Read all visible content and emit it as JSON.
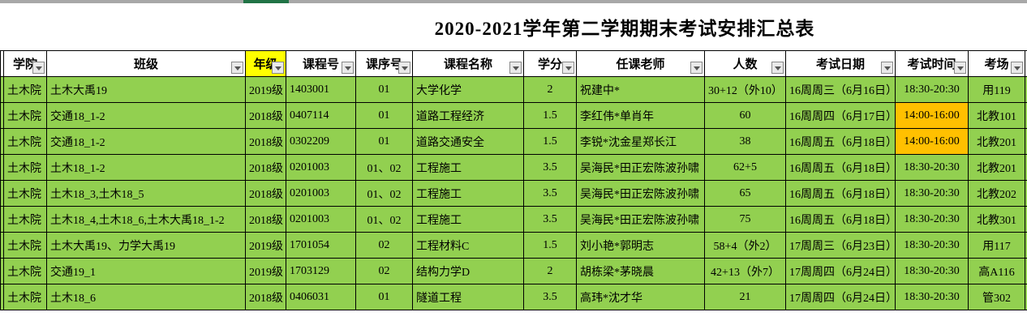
{
  "window": {
    "topbar_color": "#a8a8a8",
    "active_segment_color": "#217346"
  },
  "title": "2020-2021学年第二学期期末考试安排汇总表",
  "table": {
    "colors": {
      "row_bg": "#92d050",
      "time_highlight_bg": "#ffc000",
      "grade_header_bg": "#ffff00",
      "border": "#000000"
    },
    "column_keys": [
      "college",
      "class",
      "grade",
      "course_no",
      "seq_no",
      "course_name",
      "credits",
      "teacher",
      "count",
      "date",
      "time",
      "room"
    ],
    "columns": [
      {
        "label": "学院"
      },
      {
        "label": "班级"
      },
      {
        "label": "年级"
      },
      {
        "label": "课程号"
      },
      {
        "label": "课序号"
      },
      {
        "label": "课程名称"
      },
      {
        "label": "学分"
      },
      {
        "label": "任课老师"
      },
      {
        "label": "人数"
      },
      {
        "label": "考试日期"
      },
      {
        "label": "考试时间"
      },
      {
        "label": "考场"
      }
    ],
    "rows": [
      {
        "cells": [
          "土木院",
          "土木大禹19",
          "2019级",
          "1403001",
          "01",
          "大学化学",
          "2",
          "祝建中*",
          "30+12（外10）",
          "16周周三（6月16日）",
          "18:30-20:30",
          "用119"
        ],
        "time_highlight": false
      },
      {
        "cells": [
          "土木院",
          "交通18_1-2",
          "2018级",
          "0407114",
          "01",
          "道路工程经济",
          "1.5",
          "李红伟*单肖年",
          "60",
          "16周周四（6月17日）",
          "14:00-16:00",
          "北教101"
        ],
        "time_highlight": true
      },
      {
        "cells": [
          "土木院",
          "交通18_1-2",
          "2018级",
          "0302209",
          "01",
          "道路交通安全",
          "1.5",
          "李锐*沈金星郑长江",
          "38",
          "16周周五（6月18日）",
          "14:00-16:00",
          "北教201"
        ],
        "time_highlight": true
      },
      {
        "cells": [
          "土木院",
          "土木18_1-2",
          "2018级",
          "0201003",
          "01、02",
          "工程施工",
          "3.5",
          "吴海民*田正宏陈波孙啸",
          "62+5",
          "16周周五（6月18日）",
          "18:30-20:30",
          "北教201"
        ],
        "time_highlight": false
      },
      {
        "cells": [
          "土木院",
          "土木18_3,土木18_5",
          "2018级",
          "0201003",
          "01、02",
          "工程施工",
          "3.5",
          "吴海民*田正宏陈波孙啸",
          "65",
          "16周周五（6月18日）",
          "18:30-20:30",
          "北教202"
        ],
        "time_highlight": false
      },
      {
        "cells": [
          "土木院",
          "土木18_4,土木18_6,土木大禹18_1-2",
          "2018级",
          "0201003",
          "01、02",
          "工程施工",
          "3.5",
          "吴海民*田正宏陈波孙啸",
          "75",
          "16周周五（6月18日）",
          "18:30-20:30",
          "北教301"
        ],
        "time_highlight": false
      },
      {
        "cells": [
          "土木院",
          "土木大禹19、力学大禹19",
          "2019级",
          "1701054",
          "02",
          "工程材料C",
          "1.5",
          "刘小艳*郭明志",
          "58+4（外2）",
          "17周周三（6月23日）",
          "18:30-20:30",
          "用117"
        ],
        "time_highlight": false
      },
      {
        "cells": [
          "土木院",
          "交通19_1",
          "2019级",
          "1703129",
          "02",
          "结构力学D",
          "2",
          "胡栋梁*茅晓晨",
          "42+13（外7）",
          "17周周四（6月24日）",
          "18:30-20:30",
          "高A116"
        ],
        "time_highlight": false
      },
      {
        "cells": [
          "土木院",
          "土木18_6",
          "2018级",
          "0406031",
          "01",
          "隧道工程",
          "3.5",
          "高玮*沈才华",
          "21",
          "17周周四（6月24日）",
          "18:30-20:30",
          "管302"
        ],
        "time_highlight": false
      }
    ]
  }
}
